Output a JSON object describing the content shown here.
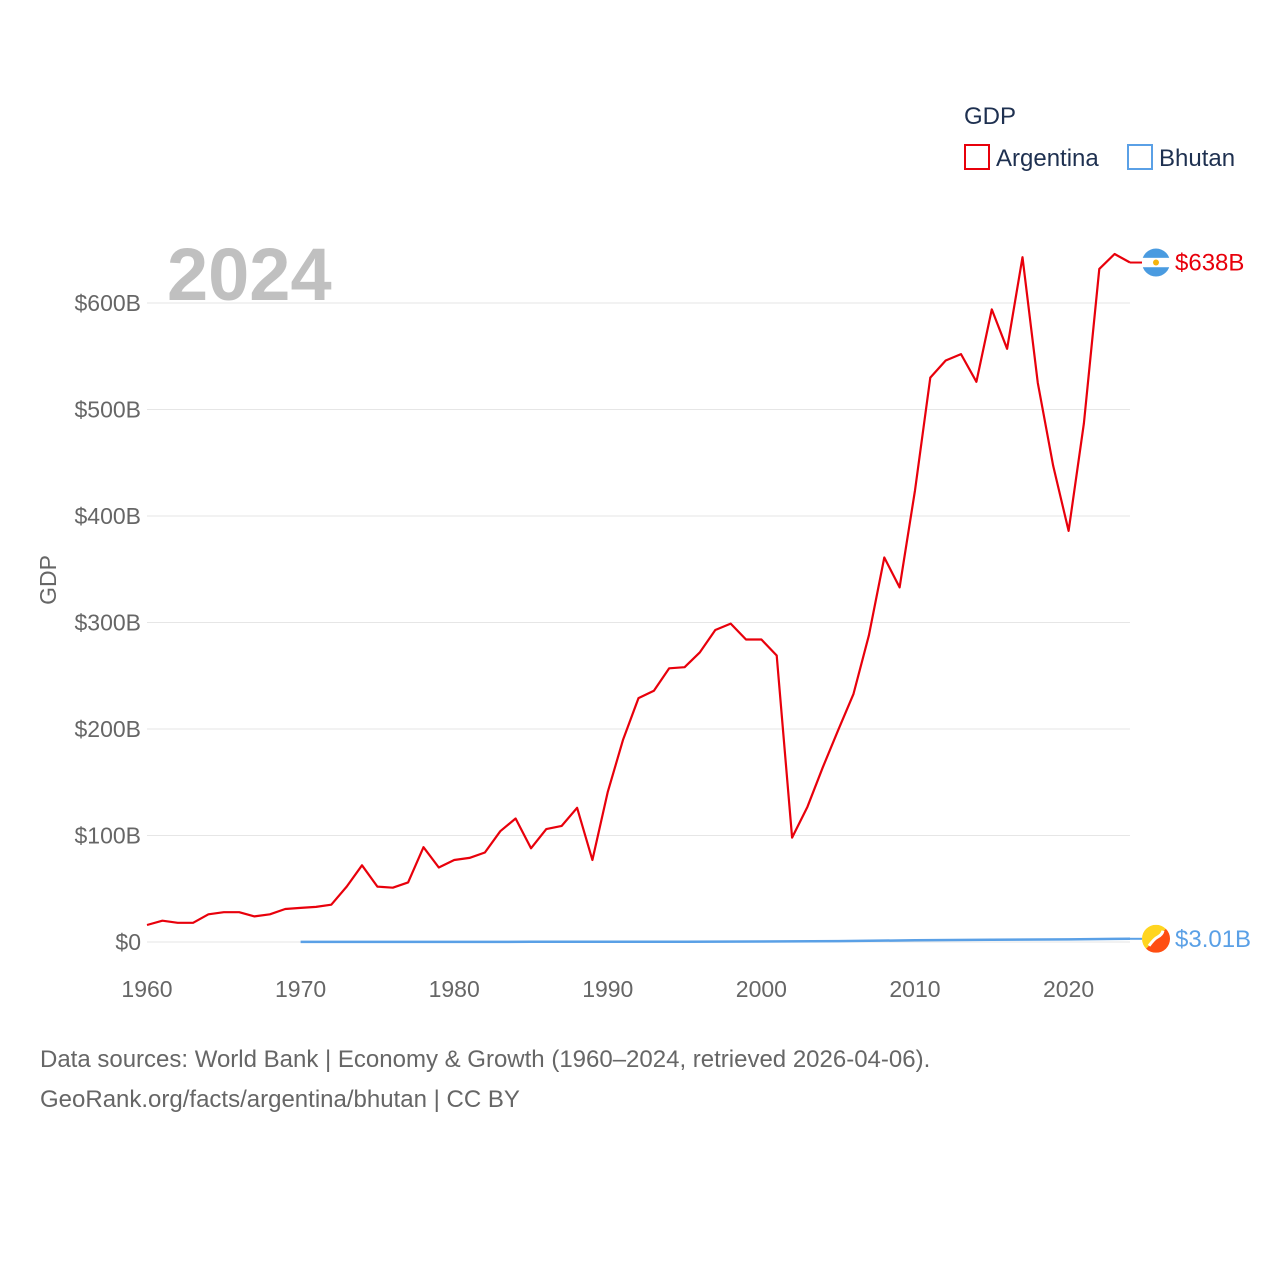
{
  "chart_data": {
    "type": "line",
    "year_label": "2024",
    "ylabel": "GDP",
    "xlabel": "",
    "xlim": [
      1960,
      2024
    ],
    "ylim": [
      0,
      650
    ],
    "y_unit": "billions USD",
    "x_ticks": [
      "1960",
      "1970",
      "1980",
      "1990",
      "2000",
      "2010",
      "2020"
    ],
    "y_ticks": [
      {
        "value": 0,
        "label": "$0"
      },
      {
        "value": 100,
        "label": "$100B"
      },
      {
        "value": 200,
        "label": "$200B"
      },
      {
        "value": 300,
        "label": "$300B"
      },
      {
        "value": 400,
        "label": "$400B"
      },
      {
        "value": 500,
        "label": "$500B"
      },
      {
        "value": 600,
        "label": "$600B"
      }
    ],
    "legend": {
      "title": "GDP",
      "position": "top-right"
    },
    "grid": true,
    "series": [
      {
        "name": "Argentina",
        "color": "#e8000b",
        "end_label": "$638B",
        "icon": "argentina-flag-icon",
        "x": [
          1960,
          1961,
          1962,
          1963,
          1964,
          1965,
          1966,
          1967,
          1968,
          1969,
          1970,
          1971,
          1972,
          1973,
          1974,
          1975,
          1976,
          1977,
          1978,
          1979,
          1980,
          1981,
          1982,
          1983,
          1984,
          1985,
          1986,
          1987,
          1988,
          1989,
          1990,
          1991,
          1992,
          1993,
          1994,
          1995,
          1996,
          1997,
          1998,
          1999,
          2000,
          2001,
          2002,
          2003,
          2004,
          2005,
          2006,
          2007,
          2008,
          2009,
          2010,
          2011,
          2012,
          2013,
          2014,
          2015,
          2016,
          2017,
          2018,
          2019,
          2020,
          2021,
          2022,
          2023,
          2024
        ],
        "values": [
          16,
          20,
          18,
          18,
          26,
          28,
          28,
          24,
          26,
          31,
          32,
          33,
          35,
          52,
          72,
          52,
          51,
          56,
          89,
          70,
          77,
          79,
          84,
          104,
          116,
          88,
          106,
          109,
          126,
          77,
          141,
          190,
          229,
          236,
          257,
          258,
          272,
          293,
          299,
          284,
          284,
          269,
          98,
          127,
          164,
          199,
          233,
          288,
          361,
          333,
          424,
          530,
          546,
          552,
          526,
          594,
          557,
          643,
          525,
          447,
          386,
          487,
          632,
          646,
          638
        ]
      },
      {
        "name": "Bhutan",
        "color": "#5aa0e6",
        "end_label": "$3.01B",
        "icon": "bhutan-flag-icon",
        "x": [
          1970,
          1975,
          1980,
          1985,
          1990,
          1995,
          2000,
          2005,
          2010,
          2015,
          2020,
          2023,
          2024
        ],
        "values": [
          0.05,
          0.1,
          0.14,
          0.2,
          0.3,
          0.32,
          0.44,
          0.8,
          1.6,
          2.1,
          2.4,
          2.9,
          3.01
        ]
      }
    ]
  },
  "footer": {
    "source_line": "Data sources: World Bank | Economy & Growth (1960–2024, retrieved 2026-04-06).",
    "url_line": "GeoRank.org/facts/argentina/bhutan | CC BY"
  }
}
